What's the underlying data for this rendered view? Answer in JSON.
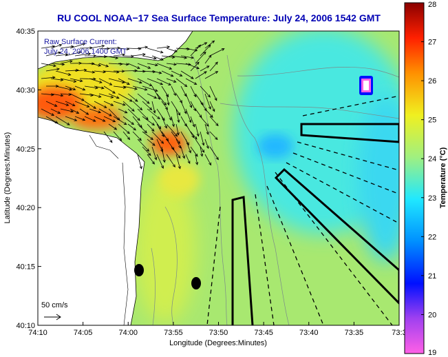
{
  "chart_data": {
    "type": "heatmap",
    "title": "RU COOL  NOAA−17  Sea Surface Temperature:  July 24, 2006 1542 GMT",
    "xlabel": "Longitude (Degrees:Minutes)",
    "ylabel": "Latitude (Degrees:Minutes)",
    "x_ticks": [
      "74:10",
      "74:05",
      "74:00",
      "73:55",
      "73:50",
      "73:45",
      "73:40",
      "73:35",
      "73:3"
    ],
    "y_ticks": [
      "40:35",
      "40:30",
      "40:25",
      "40:20",
      "40:15",
      "40:10"
    ],
    "xlim": [
      "74:10",
      "73:30"
    ],
    "ylim": [
      "40:10",
      "40:35"
    ],
    "colorbar": {
      "label": "Temperature (°C)",
      "ticks": [
        28,
        27,
        26,
        25,
        24,
        23,
        22,
        21,
        20,
        19
      ],
      "range": [
        19,
        28
      ],
      "colors": [
        "#ff60e6",
        "#a040f0",
        "#0010ff",
        "#0090ff",
        "#20e8ff",
        "#a0f080",
        "#f0f020",
        "#ff9000",
        "#ff2000",
        "#8a0000"
      ]
    },
    "annotations": {
      "legend_title": "Raw Surface Current:",
      "legend_subtitle": "July 24, 2006 1400 GMT",
      "scale_label": "50 cm/s"
    }
  }
}
